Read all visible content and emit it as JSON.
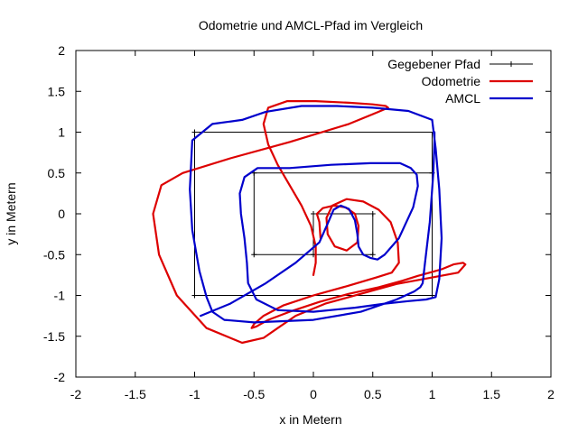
{
  "chart_data": {
    "type": "line",
    "title": "Odometrie und AMCL-Pfad im Vergleich",
    "xlabel": "x in Metern",
    "ylabel": "y in Metern",
    "xlim": [
      -2,
      2
    ],
    "ylim": [
      -2,
      2
    ],
    "xticks": [
      -2,
      -1.5,
      -1,
      -0.5,
      0,
      0.5,
      1,
      1.5,
      2
    ],
    "yticks": [
      -2,
      -1.5,
      -1,
      -0.5,
      0,
      0.5,
      1,
      1.5,
      2
    ],
    "xtick_labels": [
      "-2",
      "-1.5",
      "-1",
      "-0.5",
      "0",
      "0.5",
      "1",
      "1.5",
      "2"
    ],
    "ytick_labels": [
      "-2",
      "-1.5",
      "-1",
      "-0.5",
      "0",
      "0.5",
      "1",
      "1.5",
      "2"
    ],
    "grid": false,
    "legend_position": "top-right",
    "series": [
      {
        "name": "Gegebener Pfad",
        "color": "#000000",
        "marker": "plus",
        "x": [
          0,
          0,
          0.5,
          0.5,
          -0.5,
          -0.5,
          1,
          1,
          -1,
          -1
        ],
        "y": [
          -0.5,
          0,
          0,
          -0.5,
          -0.5,
          0.5,
          0.5,
          -1,
          -1,
          1
        ],
        "extra_segment": {
          "x": [
            -1,
            1,
            1
          ],
          "y": [
            1,
            1,
            -1
          ]
        }
      },
      {
        "name": "Odometrie",
        "color": "#dd0000",
        "x": [
          0.06,
          0.05,
          0.03,
          0.08,
          0.17,
          0.27,
          0.35,
          0.38,
          0.37,
          0.28,
          0.18,
          0.12,
          0.11,
          0.16,
          0.28,
          0.42,
          0.55,
          0.65,
          0.71,
          0.72,
          0.66,
          0.53,
          0.3,
          0.0,
          -0.25,
          -0.42,
          -0.5,
          -0.52,
          -0.48,
          -0.38,
          -0.2,
          0.05,
          0.3,
          0.55,
          0.75,
          0.88,
          0.98,
          1.08,
          1.18,
          1.26,
          1.28,
          1.22,
          1.0,
          0.7,
          0.4,
          0.1,
          -0.15,
          -0.3,
          -0.42,
          -0.6,
          -0.9,
          -1.15,
          -1.3,
          -1.35,
          -1.28,
          -1.1,
          -0.7,
          -0.2,
          0.3,
          0.55,
          0.63,
          0.61,
          0.5,
          0.3,
          0.02,
          -0.22,
          -0.38,
          -0.42,
          -0.38,
          -0.3,
          -0.2,
          -0.1,
          -0.02,
          0.02,
          0.02,
          0.0
        ],
        "y": [
          -0.3,
          -0.1,
          0.0,
          0.07,
          0.1,
          0.08,
          0.0,
          -0.15,
          -0.35,
          -0.45,
          -0.4,
          -0.25,
          -0.05,
          0.1,
          0.18,
          0.15,
          0.05,
          -0.1,
          -0.35,
          -0.6,
          -0.72,
          -0.78,
          -0.88,
          -1.0,
          -1.12,
          -1.25,
          -1.35,
          -1.4,
          -1.38,
          -1.3,
          -1.2,
          -1.08,
          -0.98,
          -0.9,
          -0.82,
          -0.76,
          -0.72,
          -0.68,
          -0.62,
          -0.6,
          -0.62,
          -0.72,
          -0.78,
          -0.86,
          -0.98,
          -1.1,
          -1.25,
          -1.4,
          -1.52,
          -1.58,
          -1.4,
          -1.0,
          -0.5,
          0.0,
          0.35,
          0.5,
          0.68,
          0.88,
          1.1,
          1.25,
          1.3,
          1.32,
          1.34,
          1.36,
          1.38,
          1.38,
          1.3,
          1.1,
          0.85,
          0.6,
          0.35,
          0.1,
          -0.15,
          -0.4,
          -0.6,
          -0.75
        ]
      },
      {
        "name": "AMCL",
        "color": "#0000cc",
        "x": [
          -0.95,
          -0.7,
          -0.4,
          -0.15,
          0.05,
          0.12,
          0.17,
          0.23,
          0.3,
          0.35,
          0.37,
          0.38,
          0.42,
          0.48,
          0.54,
          0.6,
          0.72,
          0.84,
          0.88,
          0.87,
          0.82,
          0.73,
          0.48,
          0.15,
          -0.2,
          -0.47,
          -0.58,
          -0.62,
          -0.61,
          -0.58,
          -0.56,
          -0.55,
          -0.48,
          -0.3,
          0.0,
          0.35,
          0.6,
          0.8,
          0.95,
          1.03,
          1.06,
          1.08,
          1.06,
          1.03,
          1.0,
          0.8,
          0.5,
          0.2,
          -0.1,
          -0.4,
          -0.6,
          -0.85,
          -1.02,
          -1.04,
          -1.02,
          -0.96,
          -0.9,
          -0.85,
          -0.75,
          -0.5,
          0.0,
          0.4,
          0.7,
          0.85,
          0.9,
          0.92,
          0.94,
          0.98,
          1.01,
          1.02,
          1.02
        ],
        "y": [
          -1.25,
          -1.1,
          -0.85,
          -0.6,
          -0.35,
          -0.12,
          0.05,
          0.1,
          0.06,
          -0.08,
          -0.25,
          -0.4,
          -0.5,
          -0.54,
          -0.56,
          -0.5,
          -0.3,
          0.08,
          0.34,
          0.48,
          0.56,
          0.62,
          0.62,
          0.6,
          0.56,
          0.56,
          0.45,
          0.25,
          0.0,
          -0.3,
          -0.6,
          -0.85,
          -1.05,
          -1.18,
          -1.2,
          -1.15,
          -1.1,
          -1.07,
          -1.05,
          -1.02,
          -0.8,
          -0.3,
          0.3,
          0.8,
          1.15,
          1.26,
          1.3,
          1.32,
          1.32,
          1.25,
          1.15,
          1.1,
          0.9,
          0.3,
          -0.2,
          -0.7,
          -1.02,
          -1.2,
          -1.3,
          -1.33,
          -1.3,
          -1.2,
          -1.05,
          -0.95,
          -0.9,
          -0.85,
          -0.6,
          -0.1,
          0.5,
          0.9,
          1.0
        ]
      }
    ]
  }
}
